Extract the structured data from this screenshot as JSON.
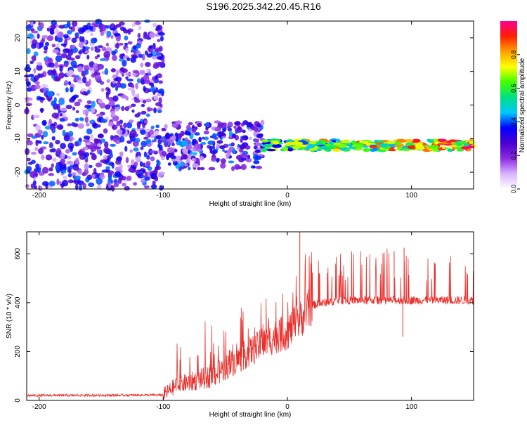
{
  "title": "S196.2025.342.20.45.R16",
  "chart_data": [
    {
      "type": "heatmap",
      "title": "S196.2025.342.20.45.R16",
      "xlabel": "Height of straight line (km)",
      "ylabel": "Frequency (Hz)",
      "xlim": [
        -210,
        150
      ],
      "ylim": [
        -25,
        25
      ],
      "xticks": [
        -200,
        -100,
        0,
        100
      ],
      "yticks": [
        -20,
        -10,
        0,
        10,
        20
      ],
      "colorbar": {
        "label": "Normalized spectral amplitude",
        "range": [
          0,
          1
        ],
        "ticks": [
          "0.0",
          "0.2",
          "0.4",
          "0.6",
          "0.8"
        ],
        "tick_values": [
          0,
          0.2,
          0.4,
          0.6,
          0.8
        ],
        "colormap": [
          "#ffffff",
          "#d8b4ff",
          "#8a2be2",
          "#4b00d0",
          "#0000ff",
          "#00c8ff",
          "#00e080",
          "#40ff00",
          "#ffff00",
          "#ffa000",
          "#ff2000",
          "#ff0090"
        ]
      },
      "features": [
        {
          "name": "noise",
          "x_range": [
            -210,
            -100
          ],
          "freq_range": [
            -25,
            25
          ],
          "amplitude": 0.15
        },
        {
          "name": "tone-onset",
          "x_range": [
            -100,
            -20
          ],
          "freq_center": -12,
          "amplitude": 0.35
        },
        {
          "name": "tone",
          "x_range": [
            -20,
            150
          ],
          "freq_center": -12,
          "amplitude": 0.9
        }
      ]
    },
    {
      "type": "line",
      "xlabel": "Height of straight line (km)",
      "ylabel": "SNR (10 * v/v)",
      "xlim": [
        -210,
        150
      ],
      "ylim": [
        0,
        690
      ],
      "xticks": [
        -200,
        -100,
        0,
        100
      ],
      "yticks": [
        0,
        200,
        400,
        600
      ],
      "color": "#e8302c",
      "series": [
        {
          "name": "SNR",
          "segments": [
            {
              "x": -210,
              "y": 20
            },
            {
              "x": -100,
              "y": 22
            },
            {
              "x": -90,
              "y": 60
            },
            {
              "x": -60,
              "y": 100
            },
            {
              "x": -30,
              "y": 200
            },
            {
              "x": -10,
              "y": 260
            },
            {
              "x": 0,
              "y": 280
            },
            {
              "x": 10,
              "y": 330
            },
            {
              "x": 20,
              "y": 390
            },
            {
              "x": 40,
              "y": 410
            },
            {
              "x": 60,
              "y": 410
            },
            {
              "x": 100,
              "y": 410
            },
            {
              "x": 150,
              "y": 410
            }
          ],
          "peaks": [
            {
              "x": 10,
              "y": 690
            },
            {
              "x": 94,
              "y": 625
            },
            {
              "x": 86,
              "y": 610
            },
            {
              "x": 93,
              "y": 260
            }
          ]
        }
      ]
    }
  ]
}
